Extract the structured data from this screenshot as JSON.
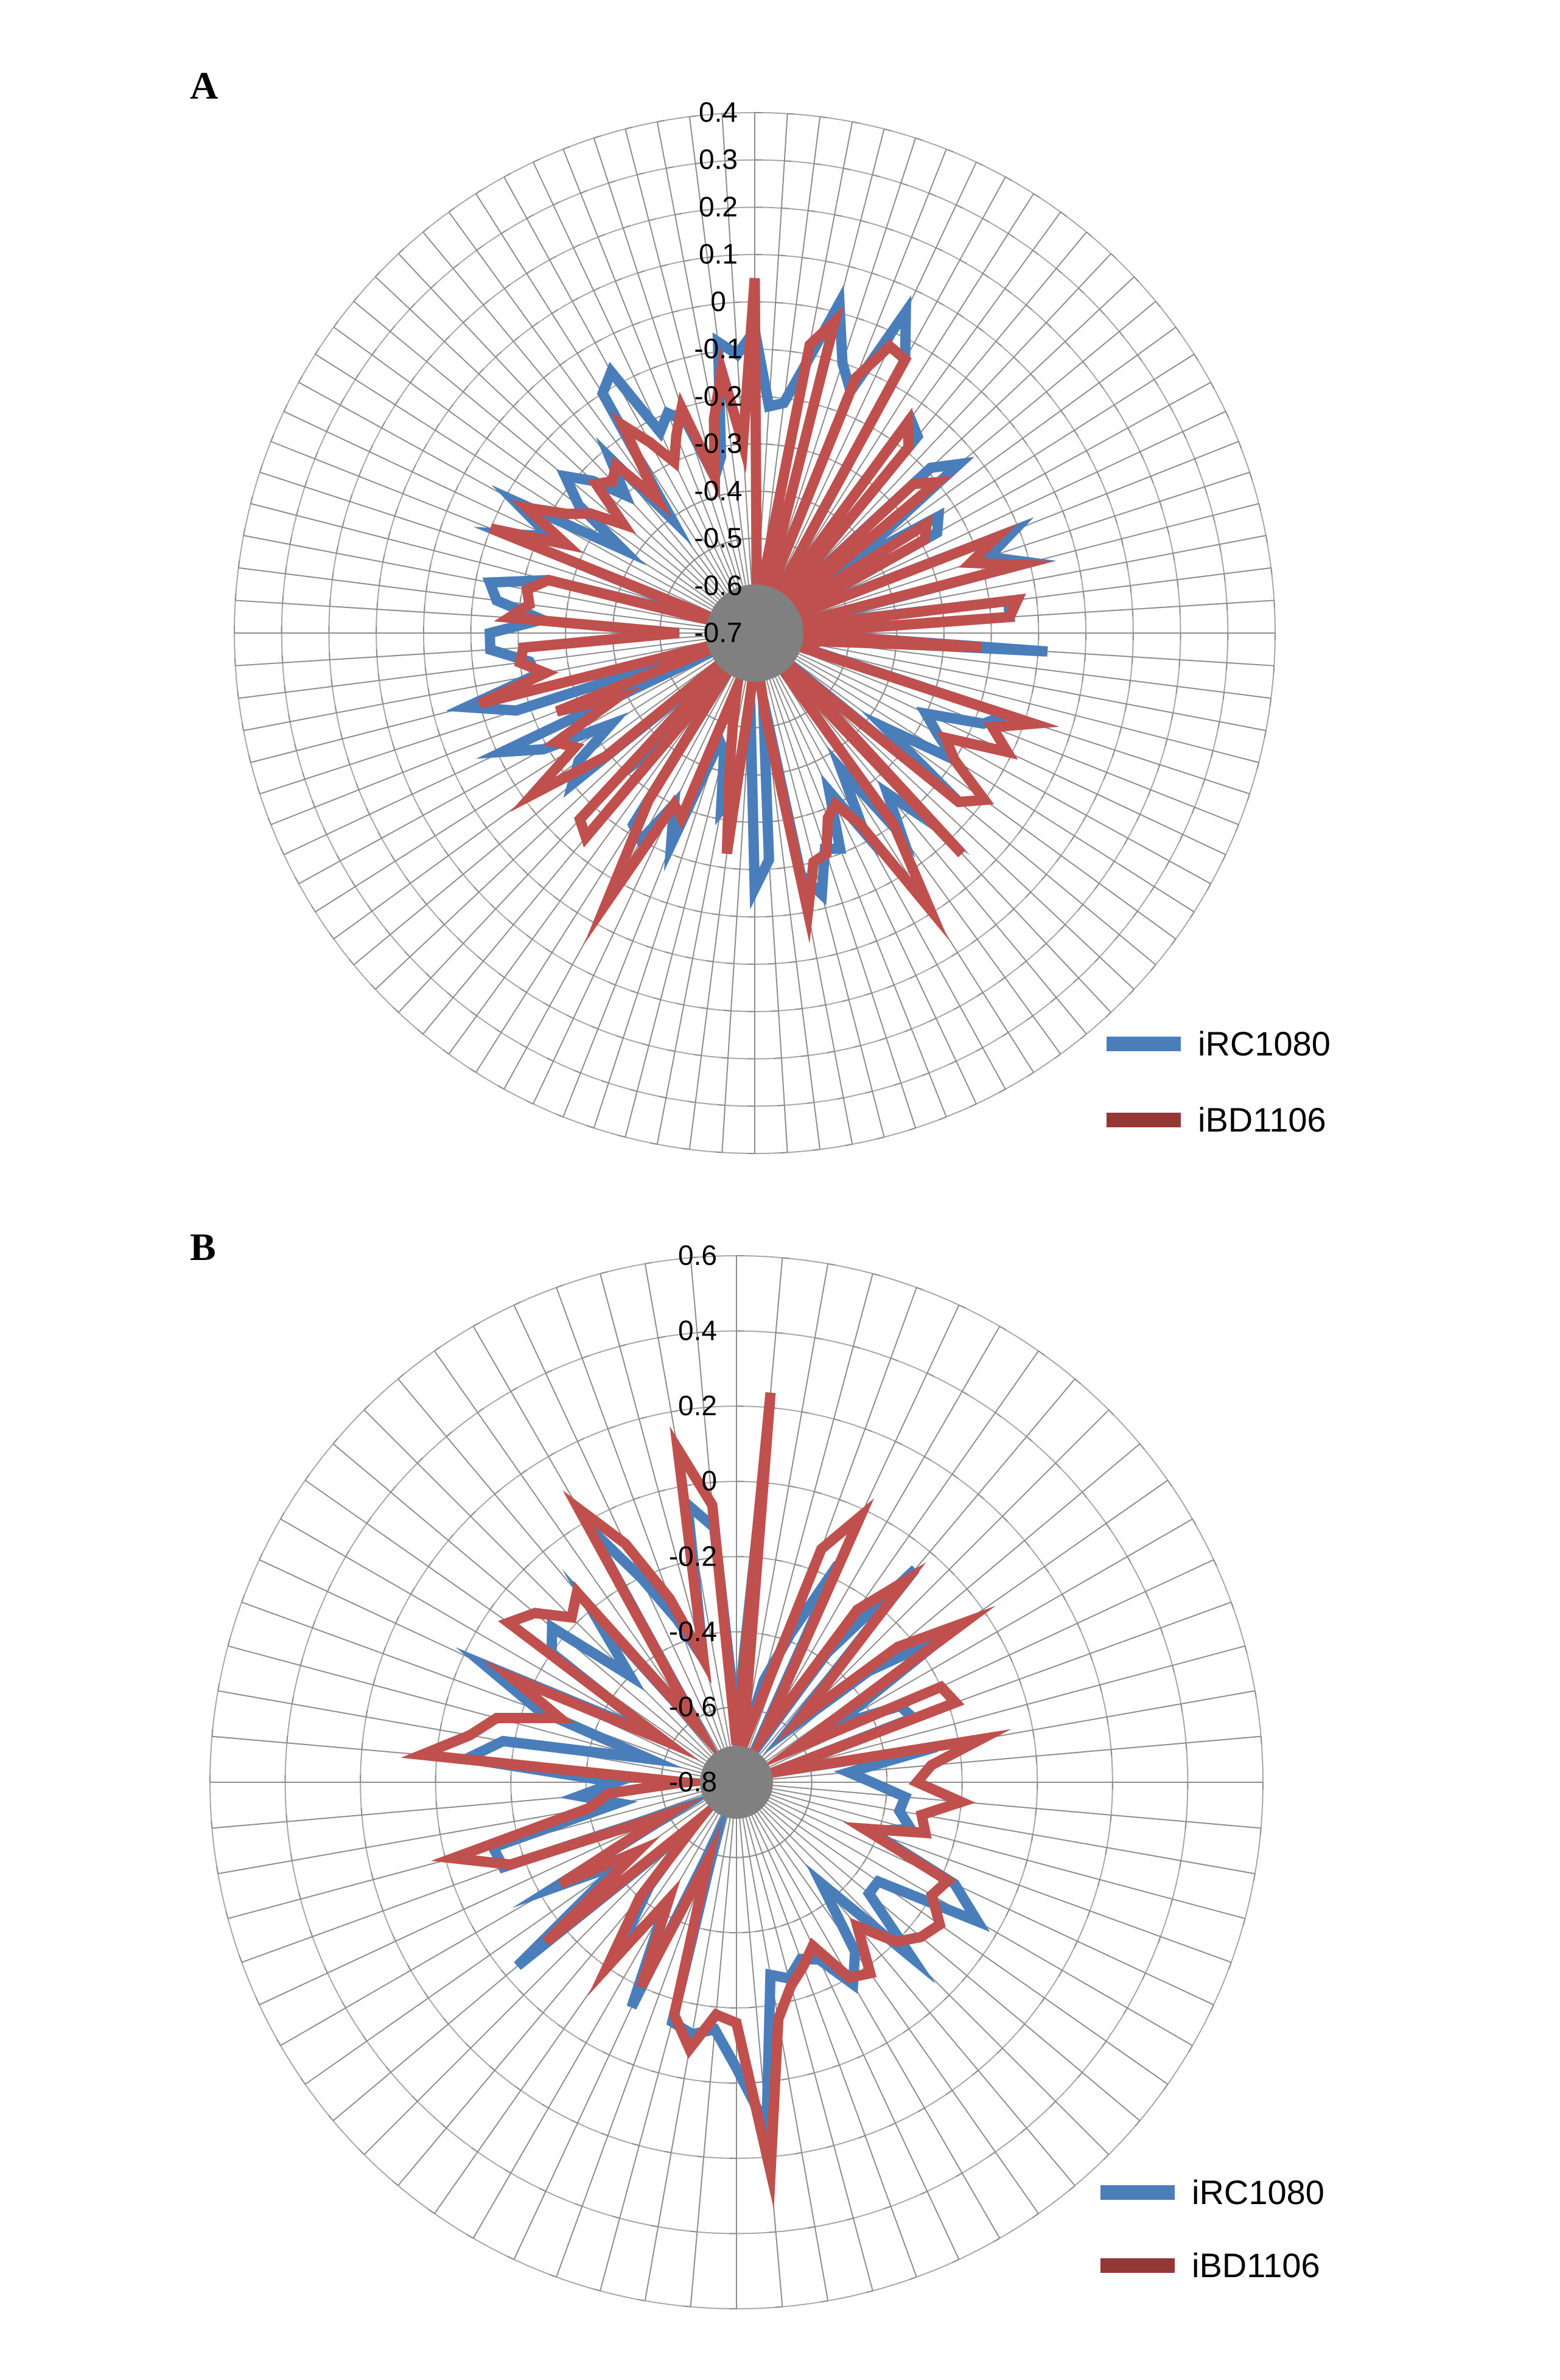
{
  "chart_data": [
    {
      "type": "radar",
      "panel_label": "A",
      "rmin": -0.7,
      "rmax": 0.4,
      "ticks": [
        0.4,
        0.3,
        0.2,
        0.1,
        0,
        -0.1,
        -0.2,
        -0.3,
        -0.4,
        -0.5,
        -0.6,
        -0.7
      ],
      "tick_labels": [
        "0.4",
        "0.3",
        "0.2",
        "0.1",
        "0",
        "-0.1",
        "-0.2",
        "-0.3",
        "-0.4",
        "-0.5",
        "-0.6",
        "-0.7"
      ],
      "num_spokes": 100,
      "legend": [
        "iRC1080",
        "iBD1106"
      ],
      "series": [
        {
          "name": "iRC1080",
          "color": "#4a7ebb",
          "values": [
            -0.06,
            -0.22,
            -0.21,
            -0.12,
            0.02,
            -0.1,
            -0.15,
            0.05,
            -0.04,
            -0.66,
            -0.14,
            -0.16,
            -0.65,
            -0.19,
            -0.14,
            -0.45,
            -0.24,
            -0.26,
            -0.64,
            -0.11,
            -0.18,
            -0.1,
            -0.64,
            -0.16,
            -0.16,
            -0.62,
            -0.08,
            -0.6,
            -0.62,
            -0.65,
            -0.14,
            -0.18,
            -0.3,
            -0.26,
            -0.2,
            -0.36,
            -0.14,
            -0.64,
            -0.14,
            -0.26,
            -0.17,
            -0.36,
            -0.22,
            -0.33,
            -0.21,
            -0.22,
            -0.13,
            -0.18,
            -0.56,
            -0.22,
            -0.16,
            -0.55,
            -0.36,
            -0.32,
            -0.44,
            -0.46,
            -0.22,
            -0.3,
            -0.2,
            -0.22,
            -0.63,
            -0.42,
            -0.3,
            -0.62,
            -0.2,
            -0.24,
            -0.34,
            -0.19,
            -0.11,
            -0.66,
            -0.17,
            -0.07,
            -0.23,
            -0.22,
            -0.14,
            -0.14,
            -0.25,
            -0.15,
            -0.13,
            -0.25,
            -0.63,
            -0.13,
            -0.22,
            -0.12,
            -0.37,
            -0.24,
            -0.18,
            -0.23,
            -0.3,
            -0.22,
            -0.4,
            -0.1,
            -0.07,
            -0.23,
            -0.2,
            -0.23,
            -0.36,
            -0.32,
            -0.08,
            -0.11
          ]
        },
        {
          "name": "iBD1106",
          "color": "#c0504d",
          "values": [
            0.05,
            -0.63,
            -0.64,
            -0.08,
            -0.02,
            -0.65,
            -0.12,
            -0.03,
            -0.04,
            -0.66,
            -0.15,
            -0.19,
            -0.66,
            -0.24,
            -0.2,
            -0.66,
            -0.27,
            -0.29,
            -0.65,
            -0.15,
            -0.22,
            -0.12,
            -0.66,
            -0.14,
            -0.16,
            -0.62,
            -0.22,
            -0.56,
            -0.58,
            -0.67,
            -0.08,
            -0.16,
            -0.11,
            -0.24,
            -0.2,
            -0.1,
            -0.14,
            -0.61,
            -0.06,
            -0.66,
            -0.2,
            -0.01,
            -0.24,
            -0.3,
            -0.28,
            -0.21,
            -0.2,
            -0.1,
            -0.53,
            -0.66,
            -0.64,
            -0.58,
            -0.23,
            -0.42,
            -0.52,
            -0.58,
            -0.28,
            -0.3,
            -0.05,
            -0.28,
            -0.62,
            -0.14,
            -0.16,
            -0.65,
            -0.29,
            -0.12,
            -0.25,
            -0.22,
            -0.38,
            -0.25,
            -0.66,
            -0.1,
            -0.25,
            -0.2,
            -0.21,
            -0.54,
            -0.18,
            -0.22,
            -0.21,
            -0.25,
            -0.65,
            -0.1,
            -0.26,
            -0.15,
            -0.23,
            -0.27,
            -0.34,
            -0.24,
            -0.26,
            -0.24,
            -0.35,
            -0.18,
            -0.24,
            -0.3,
            -0.25,
            -0.2,
            -0.36,
            -0.24,
            -0.14,
            -0.3
          ]
        }
      ]
    },
    {
      "type": "radar",
      "panel_label": "B",
      "rmin": -0.8,
      "rmax": 0.6,
      "ticks": [
        0.6,
        0.4,
        0.2,
        0,
        -0.2,
        -0.4,
        -0.6,
        -0.8
      ],
      "tick_labels": [
        "0.6",
        "0.4",
        "0.2",
        "0",
        "-0.2",
        "-0.4",
        "-0.6",
        "-0.8"
      ],
      "num_spokes": 72,
      "legend": [
        "iRC1080",
        "iBD1106"
      ],
      "series": [
        {
          "name": "iRC1080",
          "color": "#4a7ebb",
          "values": [
            -0.65,
            0.06,
            -0.7,
            -0.52,
            -0.38,
            -0.16,
            -0.7,
            -0.38,
            -0.06,
            -0.6,
            -0.34,
            -0.12,
            -0.5,
            -0.32,
            -0.3,
            -0.7,
            -0.26,
            -0.5,
            -0.44,
            -0.35,
            -0.36,
            -0.32,
            -0.42,
            -0.16,
            -0.06,
            -0.34,
            -0.34,
            -0.14,
            -0.45,
            -0.25,
            -0.18,
            -0.28,
            -0.3,
            -0.26,
            -0.28,
            0.12,
            -0.04,
            -0.14,
            -0.12,
            -0.14,
            -0.64,
            -0.14,
            -0.42,
            -0.25,
            -0.44,
            -0.64,
            -0.04,
            -0.42,
            -0.24,
            -0.63,
            -0.14,
            -0.13,
            -0.48,
            -0.38,
            -0.48,
            -0.08,
            -0.17,
            -0.56,
            -0.24,
            -0.06,
            -0.55,
            -0.2,
            -0.16,
            -0.4,
            -0.2,
            -0.63,
            -0.02,
            -0.2,
            -0.34,
            -0.46,
            -0.05,
            -0.12
          ]
        },
        {
          "name": "iBD1106",
          "color": "#c0504d",
          "values": [
            -0.7,
            0.24,
            -0.7,
            -0.62,
            -0.14,
            -0.02,
            -0.66,
            -0.24,
            -0.1,
            -0.56,
            -0.24,
            -0.06,
            -0.62,
            -0.2,
            -0.18,
            -0.7,
            -0.14,
            -0.28,
            -0.32,
            -0.2,
            -0.3,
            -0.28,
            -0.44,
            -0.18,
            -0.2,
            -0.14,
            -0.16,
            -0.2,
            -0.3,
            -0.18,
            -0.2,
            -0.32,
            -0.28,
            -0.24,
            -0.16,
            0.24,
            -0.16,
            -0.18,
            -0.08,
            -0.16,
            -0.58,
            -0.2,
            -0.44,
            -0.2,
            -0.4,
            -0.66,
            -0.14,
            -0.48,
            -0.26,
            -0.6,
            -0.16,
            -0.02,
            -0.4,
            -0.46,
            -0.66,
            0.04,
            -0.08,
            -0.14,
            -0.3,
            -0.14,
            -0.58,
            -0.06,
            -0.1,
            -0.18,
            -0.14,
            -0.62,
            0.04,
            -0.1,
            -0.28,
            -0.46,
            0.1,
            -0.06
          ]
        }
      ]
    }
  ]
}
